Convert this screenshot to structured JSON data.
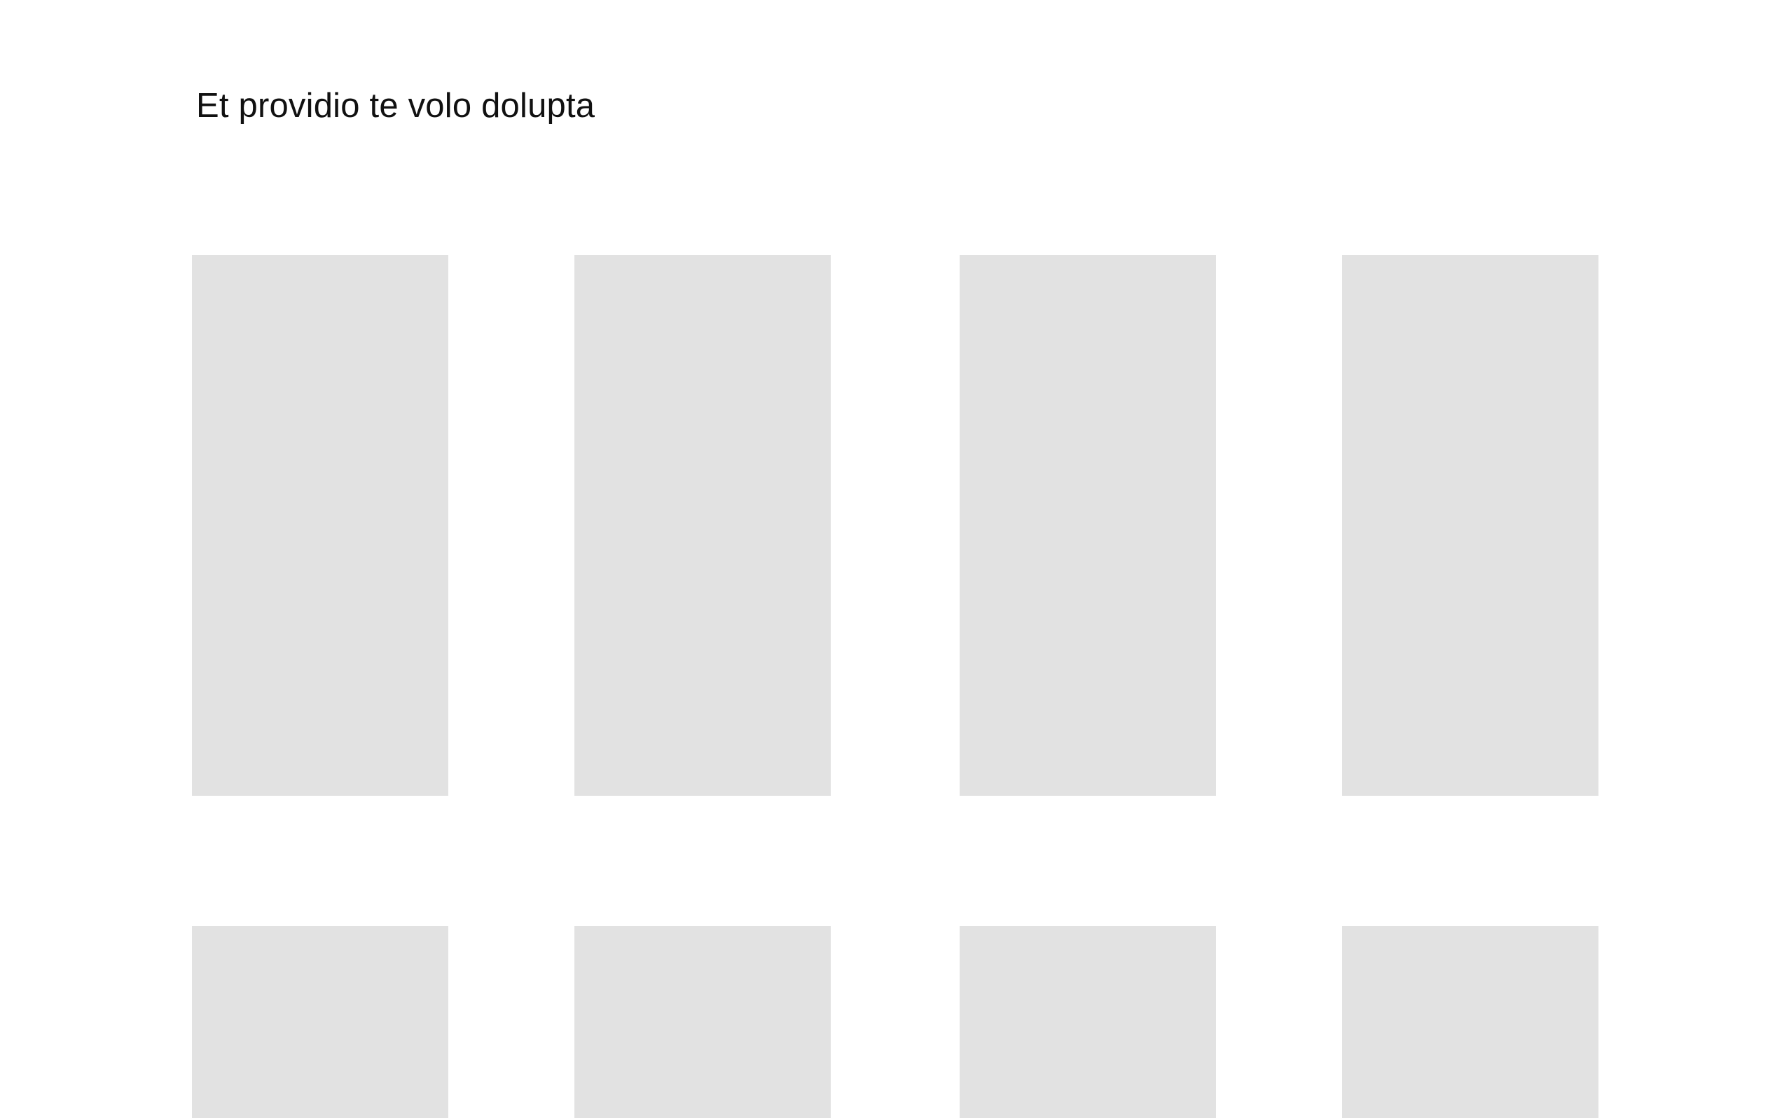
{
  "page": {
    "title": "Et providio te volo dolupta"
  },
  "colors": {
    "background": "#ffffff",
    "placeholder_tile": "#e2e2e2",
    "text": "#111111"
  },
  "grid": {
    "rows": 2,
    "columns": 4,
    "tile_type": "image-placeholder"
  }
}
